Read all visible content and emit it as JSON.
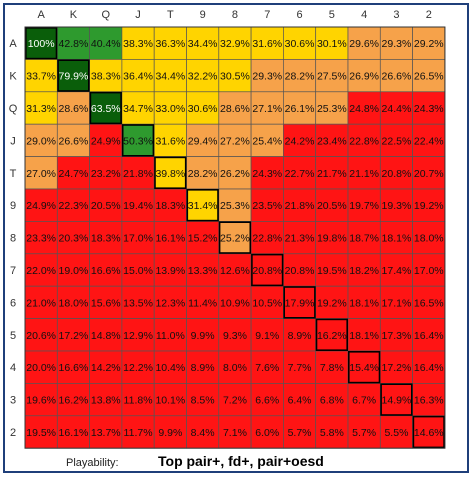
{
  "chart_data": {
    "type": "heatmap",
    "title": "",
    "columns": [
      "A",
      "K",
      "Q",
      "J",
      "T",
      "9",
      "8",
      "7",
      "6",
      "5",
      "4",
      "3",
      "2"
    ],
    "rows": [
      "A",
      "K",
      "Q",
      "J",
      "T",
      "9",
      "8",
      "7",
      "6",
      "5",
      "4",
      "3",
      "2"
    ],
    "values": [
      [
        "100%",
        "42.8%",
        "40.4%",
        "38.3%",
        "36.3%",
        "34.4%",
        "32.9%",
        "31.6%",
        "30.6%",
        "30.1%",
        "29.6%",
        "29.3%",
        "29.2%"
      ],
      [
        "33.7%",
        "79.9%",
        "38.3%",
        "36.4%",
        "34.4%",
        "32.2%",
        "30.5%",
        "29.3%",
        "28.2%",
        "27.5%",
        "26.9%",
        "26.6%",
        "26.5%"
      ],
      [
        "31.3%",
        "28.6%",
        "63.5%",
        "34.7%",
        "33.0%",
        "30.6%",
        "28.6%",
        "27.1%",
        "26.1%",
        "25.3%",
        "24.8%",
        "24.4%",
        "24.3%"
      ],
      [
        "29.0%",
        "26.6%",
        "24.9%",
        "50.3%",
        "31.6%",
        "29.4%",
        "27.2%",
        "25.4%",
        "24.2%",
        "23.4%",
        "22.8%",
        "22.5%",
        "22.4%"
      ],
      [
        "27.0%",
        "24.7%",
        "23.2%",
        "21.8%",
        "39.8%",
        "28.2%",
        "26.2%",
        "24.3%",
        "22.7%",
        "21.7%",
        "21.1%",
        "20.8%",
        "20.7%"
      ],
      [
        "24.9%",
        "22.3%",
        "20.5%",
        "19.4%",
        "18.3%",
        "31.4%",
        "25.3%",
        "23.5%",
        "21.8%",
        "20.5%",
        "19.7%",
        "19.3%",
        "19.2%"
      ],
      [
        "23.3%",
        "20.3%",
        "18.3%",
        "17.0%",
        "16.1%",
        "15.2%",
        "25.2%",
        "22.8%",
        "21.3%",
        "19.8%",
        "18.7%",
        "18.1%",
        "18.0%"
      ],
      [
        "22.0%",
        "19.0%",
        "16.6%",
        "15.0%",
        "13.9%",
        "13.3%",
        "12.6%",
        "20.8%",
        "20.8%",
        "19.5%",
        "18.2%",
        "17.4%",
        "17.0%"
      ],
      [
        "21.0%",
        "18.0%",
        "15.6%",
        "13.5%",
        "12.3%",
        "11.4%",
        "10.9%",
        "10.5%",
        "17.9%",
        "19.2%",
        "18.1%",
        "17.1%",
        "16.5%"
      ],
      [
        "20.6%",
        "17.2%",
        "14.8%",
        "12.9%",
        "11.0%",
        "9.9%",
        "9.3%",
        "9.1%",
        "8.9%",
        "16.2%",
        "18.1%",
        "17.3%",
        "16.4%"
      ],
      [
        "20.0%",
        "16.6%",
        "14.2%",
        "12.2%",
        "10.4%",
        "8.9%",
        "8.0%",
        "7.6%",
        "7.7%",
        "7.8%",
        "15.4%",
        "17.2%",
        "16.4%"
      ],
      [
        "19.6%",
        "16.2%",
        "13.8%",
        "11.8%",
        "10.1%",
        "8.5%",
        "7.2%",
        "6.6%",
        "6.4%",
        "6.8%",
        "6.7%",
        "14.9%",
        "16.3%"
      ],
      [
        "19.5%",
        "16.1%",
        "13.7%",
        "11.7%",
        "9.9%",
        "8.4%",
        "7.1%",
        "6.0%",
        "5.7%",
        "5.8%",
        "5.7%",
        "5.5%",
        "14.6%"
      ]
    ],
    "color_scale": {
      "dark_green": "#0a5e0a",
      "green": "#2e9a2e",
      "yellow_light": "#ffff99",
      "yellow": "#ffd400",
      "orange": "#f6a24a",
      "red": "#ff1414"
    },
    "xlabel": "",
    "ylabel": ""
  },
  "footer": {
    "label": "Playability:",
    "title": "Top pair+, fd+, pair+oesd"
  }
}
